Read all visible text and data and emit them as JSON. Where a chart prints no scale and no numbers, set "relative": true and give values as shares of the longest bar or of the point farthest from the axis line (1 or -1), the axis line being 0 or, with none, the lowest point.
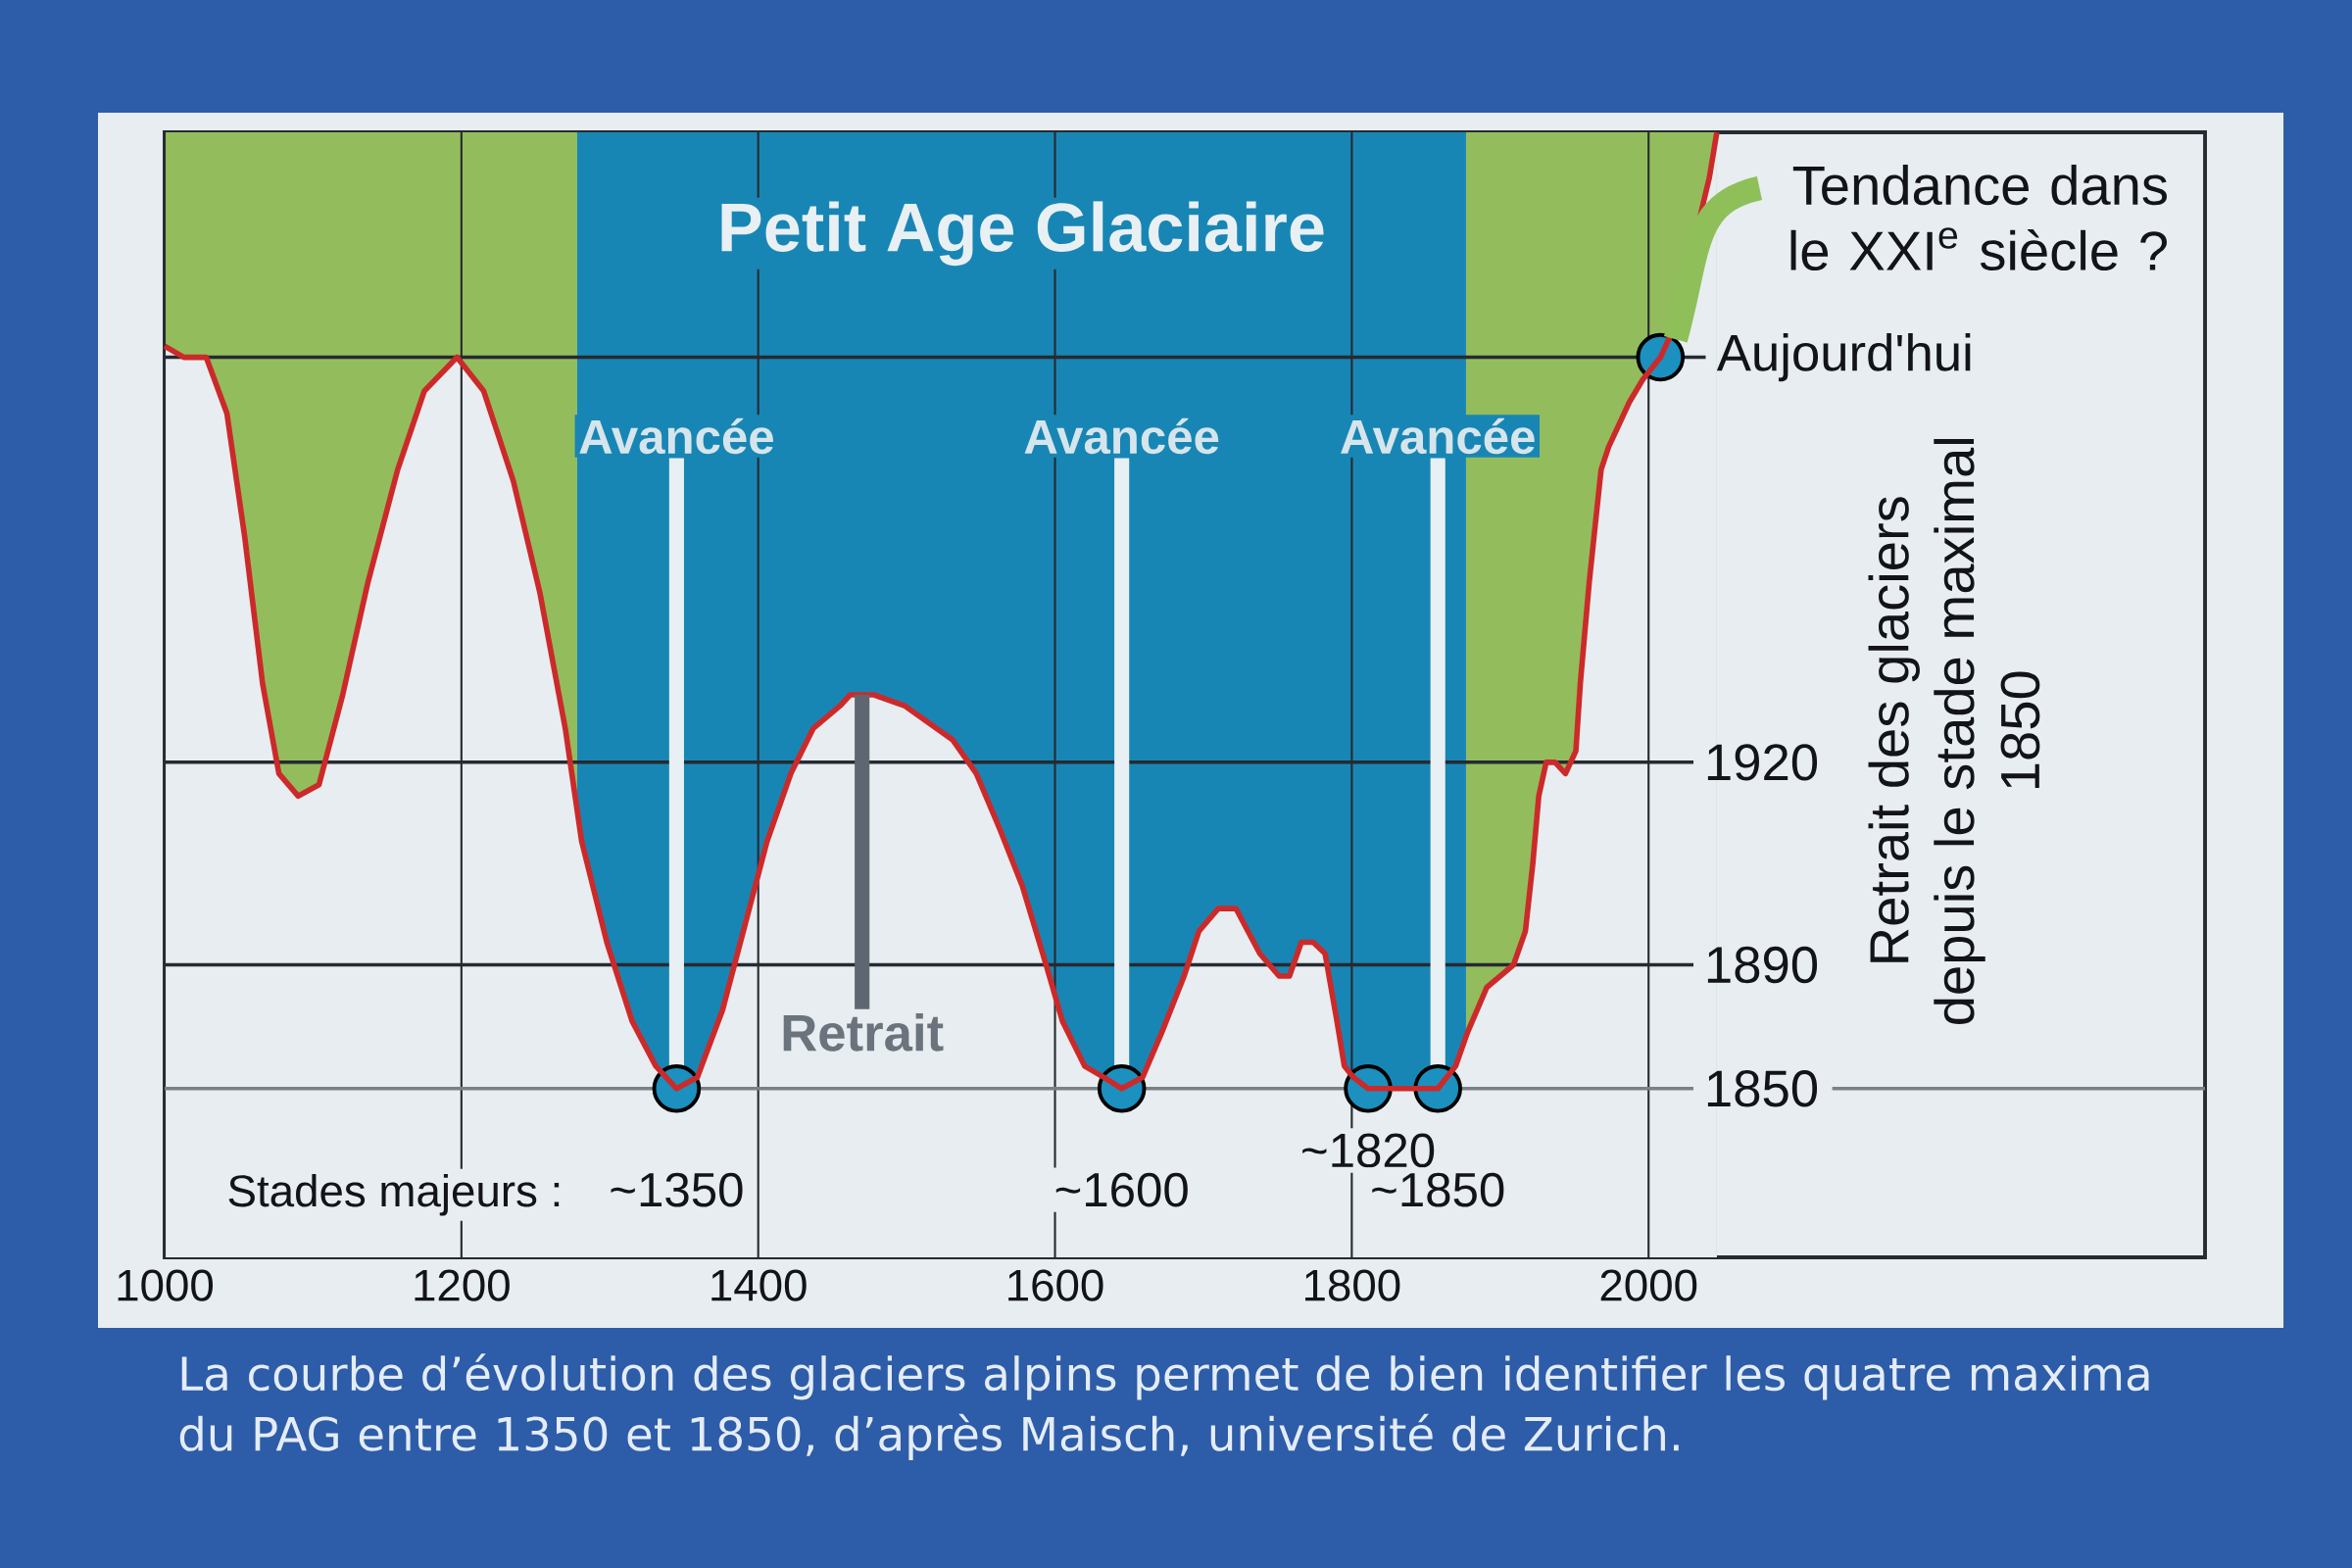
{
  "chart_data": {
    "type": "line",
    "relative": true,
    "xlim": [
      1000,
      2375
    ],
    "xticks": [
      1000,
      1200,
      1400,
      1600,
      1800,
      2000
    ],
    "grid": "x",
    "ylabel": "Retrait des glaciers depuis le stade maximal 1850",
    "series": [
      {
        "type": "area",
        "color": "#cc2a2a",
        "x": [
          1000,
          1013,
          1028,
          1042,
          1054,
          1066,
          1077,
          1090,
          1104,
          1120,
          1137,
          1157,
          1175,
          1197,
          1215,
          1235,
          1253,
          1270,
          1281,
          1298,
          1315,
          1331,
          1345,
          1359,
          1376,
          1394,
          1406,
          1422,
          1437,
          1455,
          1462,
          1478,
          1499,
          1531,
          1547,
          1563,
          1578,
          1594,
          1605,
          1620,
          1633,
          1645,
          1659,
          1672,
          1687,
          1697,
          1710,
          1722,
          1738,
          1751,
          1758,
          1766,
          1774,
          1782,
          1790,
          1795,
          1801,
          1811,
          1829,
          1842,
          1858,
          1870,
          1878,
          1891,
          1909,
          1917,
          1922,
          1926,
          1931,
          1937,
          1944,
          1951,
          1954,
          1960,
          1964,
          1968,
          1973,
          1987,
          1996,
          2008,
          2015,
          2024,
          2032,
          2041,
          2046
        ],
        "values": [
          0.81,
          0.8,
          0.8,
          0.75,
          0.64,
          0.51,
          0.43,
          0.41,
          0.42,
          0.5,
          0.6,
          0.7,
          0.77,
          0.8,
          0.77,
          0.69,
          0.59,
          0.47,
          0.37,
          0.28,
          0.21,
          0.17,
          0.15,
          0.16,
          0.22,
          0.31,
          0.37,
          0.43,
          0.47,
          0.49,
          0.5,
          0.5,
          0.49,
          0.46,
          0.43,
          0.38,
          0.33,
          0.26,
          0.21,
          0.17,
          0.16,
          0.15,
          0.16,
          0.2,
          0.25,
          0.29,
          0.31,
          0.31,
          0.27,
          0.25,
          0.25,
          0.28,
          0.28,
          0.27,
          0.21,
          0.17,
          0.16,
          0.15,
          0.15,
          0.15,
          0.15,
          0.17,
          0.2,
          0.24,
          0.26,
          0.29,
          0.35,
          0.41,
          0.44,
          0.44,
          0.43,
          0.45,
          0.51,
          0.6,
          0.65,
          0.7,
          0.72,
          0.76,
          0.78,
          0.8,
          0.82,
          0.86,
          0.91,
          0.96,
          1.0
        ]
      },
      {
        "type": "scatter",
        "color": "#1c90bf",
        "marker": "circle",
        "x": [
          1345,
          1645,
          1811,
          1858,
          2008
        ],
        "values": [
          0.15,
          0.15,
          0.15,
          0.15,
          0.8
        ]
      }
    ],
    "bands": [
      {
        "axis": "x",
        "from": 1000,
        "to": 1278,
        "color": "#93bd5d"
      },
      {
        "axis": "x",
        "from": 1278,
        "to": 1877,
        "label": "Petit Age Glaciaire",
        "color": "#1886b5"
      },
      {
        "axis": "x",
        "from": 1877,
        "to": 2046,
        "color": "#93bd5d"
      }
    ],
    "ref_lines": [
      {
        "axis": "y",
        "value": 0.8,
        "label": "Aujourd'hui"
      },
      {
        "axis": "y",
        "value": 0.44
      },
      {
        "axis": "y",
        "value": 0.26
      },
      {
        "axis": "y",
        "value": 0.15,
        "color": "#7c8086"
      }
    ],
    "annotations": [
      {
        "text": "Avancée",
        "x": 1345,
        "y": 0.15
      },
      {
        "text": "Avancée",
        "x": 1645,
        "y": 0.15
      },
      {
        "text": "Avancée",
        "x": 1858,
        "y": 0.15
      },
      {
        "text": "Retrait",
        "x": 1470,
        "y": 0.5
      },
      {
        "text": "~1350",
        "x": 1345,
        "y": 0.15
      },
      {
        "text": "~1600",
        "x": 1645,
        "y": 0.15
      },
      {
        "text": "~1820",
        "x": 1811,
        "y": 0.15
      },
      {
        "text": "~1850",
        "x": 1858,
        "y": 0.15
      },
      {
        "text": "1920",
        "x": 2030,
        "y": 0.44
      },
      {
        "text": "1890",
        "x": 2030,
        "y": 0.26
      },
      {
        "text": "1850",
        "x": 2030,
        "y": 0.15
      },
      {
        "text": "Tendance dans le XXI$^{e}$ siècle ?",
        "x": 2008,
        "y": 0.8
      },
      "Stades majeurs :",
      "La courbe d’évolution des glaciers alpins permet de bien identifier les quatre maxima du PAG entre 1350 et 1850, d’après Maisch, université de Zurich."
    ]
  }
}
